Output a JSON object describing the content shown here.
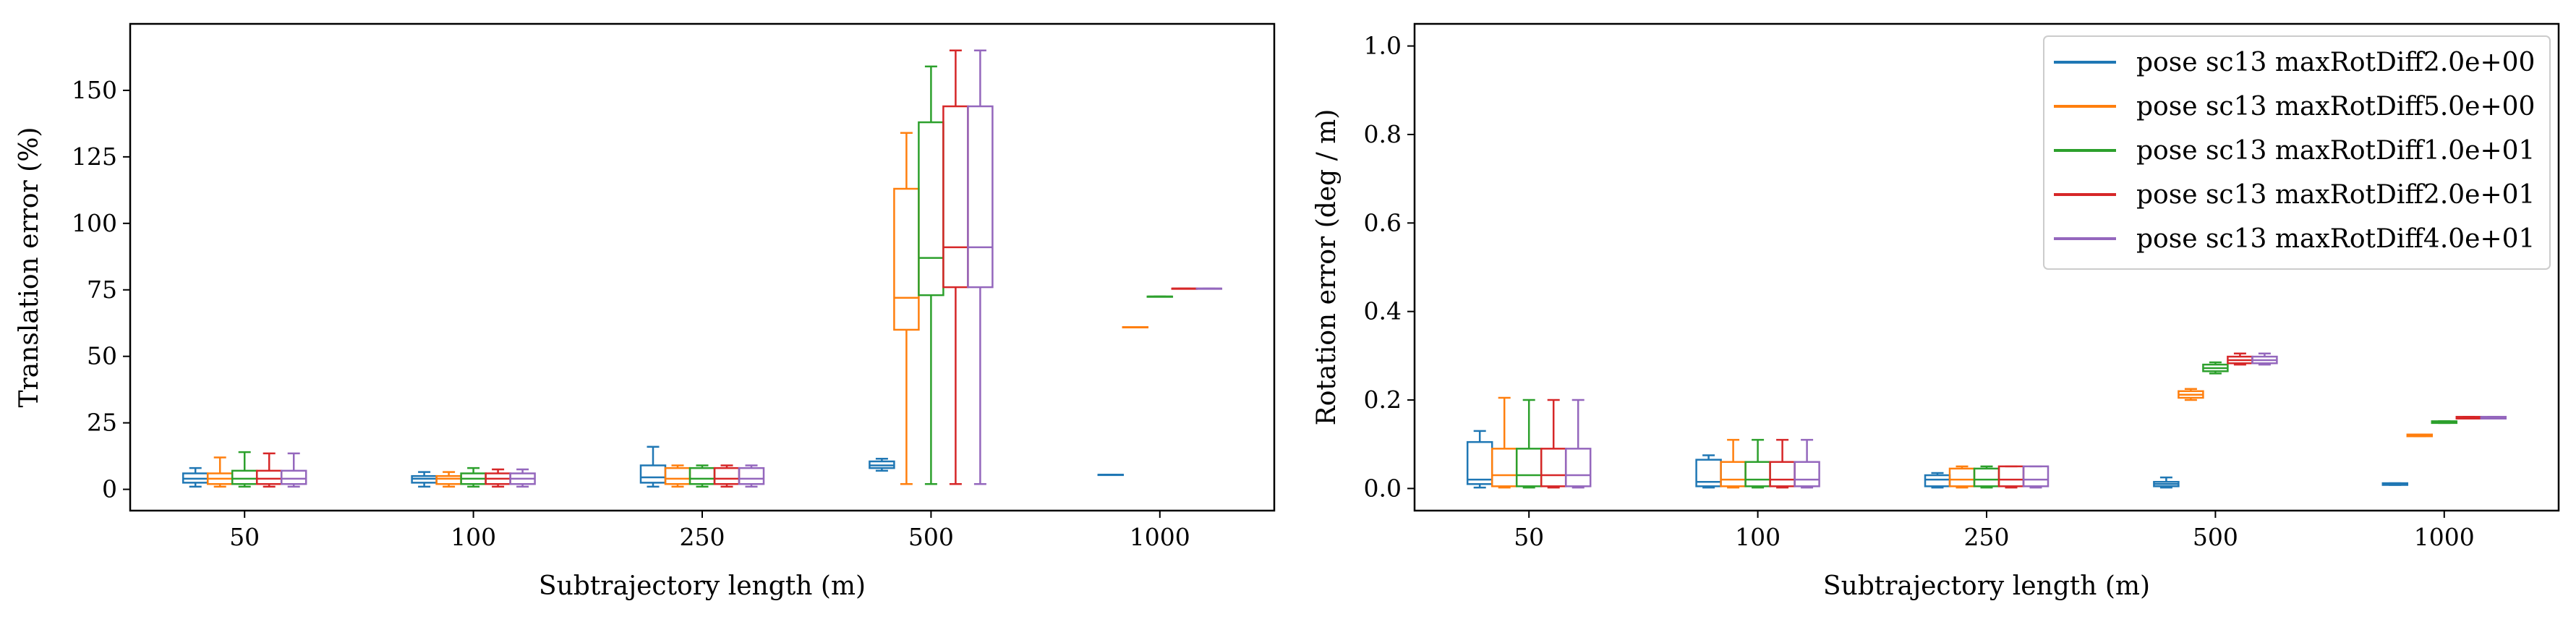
{
  "colors": {
    "series": [
      "#1f77b4",
      "#ff7f0e",
      "#2ca02c",
      "#d62728",
      "#9467bd"
    ]
  },
  "legend": {
    "entries": [
      "pose sc13 maxRotDiff2.0e+00",
      "pose sc13 maxRotDiff5.0e+00",
      "pose sc13 maxRotDiff1.0e+01",
      "pose sc13 maxRotDiff2.0e+01",
      "pose sc13 maxRotDiff4.0e+01"
    ],
    "placement": "top-right of right panel"
  },
  "chart_data": [
    {
      "type": "box",
      "xlabel": "Subtrajectory length (m)",
      "ylabel": "Translation error (%)",
      "categories": [
        "50",
        "100",
        "250",
        "500",
        "1000"
      ],
      "ylim": [
        -8,
        175
      ],
      "yticks": [
        0,
        25,
        50,
        75,
        100,
        125,
        150
      ],
      "ytick_labels": [
        "0",
        "25",
        "50",
        "75",
        "100",
        "125",
        "150"
      ],
      "grid": false,
      "series": [
        {
          "name": "pose sc13 maxRotDiff2.0e+00",
          "boxes": [
            {
              "whislo": 1,
              "q1": 2.5,
              "med": 4,
              "q3": 6,
              "whishi": 8
            },
            {
              "whislo": 1,
              "q1": 2.5,
              "med": 4,
              "q3": 5,
              "whishi": 6.5
            },
            {
              "whislo": 1,
              "q1": 2.5,
              "med": 4.5,
              "q3": 9,
              "whishi": 16
            },
            {
              "whislo": 7,
              "q1": 8,
              "med": 9,
              "q3": 10.5,
              "whishi": 11.5
            },
            {
              "whislo": 5.5,
              "q1": 5.5,
              "med": 5.5,
              "q3": 5.5,
              "whishi": 5.5
            }
          ]
        },
        {
          "name": "pose sc13 maxRotDiff5.0e+00",
          "boxes": [
            {
              "whislo": 1,
              "q1": 2,
              "med": 4,
              "q3": 6,
              "whishi": 12
            },
            {
              "whislo": 1,
              "q1": 2,
              "med": 4,
              "q3": 5,
              "whishi": 6.5
            },
            {
              "whislo": 1,
              "q1": 2,
              "med": 4,
              "q3": 8,
              "whishi": 9
            },
            {
              "whislo": 2,
              "q1": 60,
              "med": 72,
              "q3": 113,
              "whishi": 134
            },
            {
              "whislo": 61,
              "q1": 61,
              "med": 61,
              "q3": 61,
              "whishi": 61
            }
          ]
        },
        {
          "name": "pose sc13 maxRotDiff1.0e+01",
          "boxes": [
            {
              "whislo": 1,
              "q1": 2,
              "med": 4,
              "q3": 7,
              "whishi": 14
            },
            {
              "whislo": 1,
              "q1": 2,
              "med": 4,
              "q3": 6,
              "whishi": 8
            },
            {
              "whislo": 1,
              "q1": 2,
              "med": 4,
              "q3": 8,
              "whishi": 9
            },
            {
              "whislo": 2,
              "q1": 73,
              "med": 87,
              "q3": 138,
              "whishi": 159
            },
            {
              "whislo": 72.5,
              "q1": 72.5,
              "med": 72.5,
              "q3": 72.5,
              "whishi": 72.5
            }
          ]
        },
        {
          "name": "pose sc13 maxRotDiff2.0e+01",
          "boxes": [
            {
              "whislo": 1,
              "q1": 2,
              "med": 4,
              "q3": 7,
              "whishi": 13.5
            },
            {
              "whislo": 1,
              "q1": 2,
              "med": 4,
              "q3": 6,
              "whishi": 7.5
            },
            {
              "whislo": 1,
              "q1": 2,
              "med": 4,
              "q3": 8,
              "whishi": 9
            },
            {
              "whislo": 2,
              "q1": 76,
              "med": 91,
              "q3": 144,
              "whishi": 165
            },
            {
              "whislo": 75.5,
              "q1": 75.5,
              "med": 75.5,
              "q3": 75.5,
              "whishi": 75.5
            }
          ]
        },
        {
          "name": "pose sc13 maxRotDiff4.0e+01",
          "boxes": [
            {
              "whislo": 1,
              "q1": 2,
              "med": 4,
              "q3": 7,
              "whishi": 13.5
            },
            {
              "whislo": 1,
              "q1": 2,
              "med": 4,
              "q3": 6,
              "whishi": 7.5
            },
            {
              "whislo": 1,
              "q1": 2,
              "med": 4,
              "q3": 8,
              "whishi": 9
            },
            {
              "whislo": 2,
              "q1": 76,
              "med": 91,
              "q3": 144,
              "whishi": 165
            },
            {
              "whislo": 75.5,
              "q1": 75.5,
              "med": 75.5,
              "q3": 75.5,
              "whishi": 75.5
            }
          ]
        }
      ]
    },
    {
      "type": "box",
      "xlabel": "Subtrajectory length (m)",
      "ylabel": "Rotation error (deg / m)",
      "categories": [
        "50",
        "100",
        "250",
        "500",
        "1000"
      ],
      "ylim": [
        -0.05,
        1.05
      ],
      "yticks": [
        0,
        0.2,
        0.4,
        0.6,
        0.8,
        1.0
      ],
      "ytick_labels": [
        "0.0",
        "0.2",
        "0.4",
        "0.6",
        "0.8",
        "1.0"
      ],
      "grid": false,
      "series": [
        {
          "name": "pose sc13 maxRotDiff2.0e+00",
          "boxes": [
            {
              "whislo": 0.002,
              "q1": 0.01,
              "med": 0.02,
              "q3": 0.105,
              "whishi": 0.13
            },
            {
              "whislo": 0.002,
              "q1": 0.005,
              "med": 0.015,
              "q3": 0.065,
              "whishi": 0.075
            },
            {
              "whislo": 0.002,
              "q1": 0.005,
              "med": 0.02,
              "q3": 0.03,
              "whishi": 0.035
            },
            {
              "whislo": 0.002,
              "q1": 0.005,
              "med": 0.01,
              "q3": 0.015,
              "whishi": 0.025
            },
            {
              "whislo": 0.008,
              "q1": 0.008,
              "med": 0.01,
              "q3": 0.012,
              "whishi": 0.012
            }
          ]
        },
        {
          "name": "pose sc13 maxRotDiff5.0e+00",
          "boxes": [
            {
              "whislo": 0.002,
              "q1": 0.005,
              "med": 0.03,
              "q3": 0.09,
              "whishi": 0.205
            },
            {
              "whislo": 0.002,
              "q1": 0.005,
              "med": 0.02,
              "q3": 0.06,
              "whishi": 0.11
            },
            {
              "whislo": 0.002,
              "q1": 0.005,
              "med": 0.02,
              "q3": 0.045,
              "whishi": 0.05
            },
            {
              "whislo": 0.2,
              "q1": 0.205,
              "med": 0.212,
              "q3": 0.22,
              "whishi": 0.225
            },
            {
              "whislo": 0.118,
              "q1": 0.118,
              "med": 0.12,
              "q3": 0.122,
              "whishi": 0.122
            }
          ]
        },
        {
          "name": "pose sc13 maxRotDiff1.0e+01",
          "boxes": [
            {
              "whislo": 0.002,
              "q1": 0.005,
              "med": 0.03,
              "q3": 0.09,
              "whishi": 0.2
            },
            {
              "whislo": 0.002,
              "q1": 0.005,
              "med": 0.02,
              "q3": 0.06,
              "whishi": 0.11
            },
            {
              "whislo": 0.002,
              "q1": 0.005,
              "med": 0.02,
              "q3": 0.045,
              "whishi": 0.05
            },
            {
              "whislo": 0.26,
              "q1": 0.265,
              "med": 0.272,
              "q3": 0.28,
              "whishi": 0.285
            },
            {
              "whislo": 0.148,
              "q1": 0.148,
              "med": 0.15,
              "q3": 0.152,
              "whishi": 0.152
            }
          ]
        },
        {
          "name": "pose sc13 maxRotDiff2.0e+01",
          "boxes": [
            {
              "whislo": 0.002,
              "q1": 0.005,
              "med": 0.03,
              "q3": 0.09,
              "whishi": 0.2
            },
            {
              "whislo": 0.002,
              "q1": 0.005,
              "med": 0.02,
              "q3": 0.06,
              "whishi": 0.11
            },
            {
              "whislo": 0.002,
              "q1": 0.005,
              "med": 0.02,
              "q3": 0.05,
              "whishi": 0.05
            },
            {
              "whislo": 0.28,
              "q1": 0.283,
              "med": 0.29,
              "q3": 0.298,
              "whishi": 0.305
            },
            {
              "whislo": 0.158,
              "q1": 0.158,
              "med": 0.16,
              "q3": 0.162,
              "whishi": 0.162
            }
          ]
        },
        {
          "name": "pose sc13 maxRotDiff4.0e+01",
          "boxes": [
            {
              "whislo": 0.002,
              "q1": 0.005,
              "med": 0.03,
              "q3": 0.09,
              "whishi": 0.2
            },
            {
              "whislo": 0.002,
              "q1": 0.005,
              "med": 0.02,
              "q3": 0.06,
              "whishi": 0.11
            },
            {
              "whislo": 0.002,
              "q1": 0.005,
              "med": 0.02,
              "q3": 0.05,
              "whishi": 0.05
            },
            {
              "whislo": 0.28,
              "q1": 0.283,
              "med": 0.29,
              "q3": 0.298,
              "whishi": 0.305
            },
            {
              "whislo": 0.158,
              "q1": 0.158,
              "med": 0.16,
              "q3": 0.162,
              "whishi": 0.162
            }
          ]
        }
      ]
    }
  ]
}
